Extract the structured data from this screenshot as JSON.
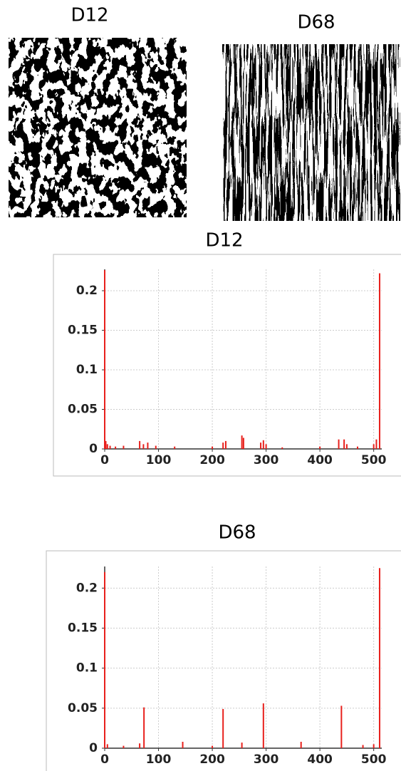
{
  "images": [
    {
      "title": "D12"
    },
    {
      "title": "D68"
    }
  ],
  "chart_data": [
    {
      "type": "stem",
      "title": "D12",
      "color": "#e8201c",
      "grid": true,
      "x": [
        0,
        2,
        5,
        10,
        20,
        35,
        65,
        72,
        80,
        95,
        130,
        200,
        220,
        225,
        255,
        258,
        290,
        295,
        300,
        330,
        400,
        435,
        445,
        450,
        470,
        500,
        505,
        511
      ],
      "values": [
        0.226,
        0.01,
        0.006,
        0.004,
        0.003,
        0.004,
        0.01,
        0.006,
        0.008,
        0.004,
        0.003,
        0.003,
        0.008,
        0.01,
        0.017,
        0.014,
        0.008,
        0.011,
        0.006,
        0.002,
        0.003,
        0.012,
        0.012,
        0.006,
        0.003,
        0.006,
        0.012,
        0.222
      ],
      "xlim": [
        0,
        515
      ],
      "xticks": [
        0,
        100,
        200,
        300,
        400,
        500
      ],
      "ylim": [
        0,
        0.227
      ],
      "yticks": [
        0,
        0.05,
        0.1,
        0.15,
        0.2
      ]
    },
    {
      "type": "stem",
      "title": "D68",
      "color": "#e8201c",
      "grid": true,
      "x": [
        0,
        5,
        35,
        65,
        73,
        145,
        200,
        220,
        255,
        295,
        365,
        440,
        480,
        500,
        511
      ],
      "values": [
        0.22,
        0.005,
        0.003,
        0.006,
        0.051,
        0.008,
        0.003,
        0.049,
        0.007,
        0.056,
        0.008,
        0.053,
        0.004,
        0.005,
        0.225
      ],
      "xlim": [
        0,
        515
      ],
      "xticks": [
        0,
        100,
        200,
        300,
        400,
        500
      ],
      "ylim": [
        0,
        0.227
      ],
      "yticks": [
        0,
        0.05,
        0.1,
        0.15,
        0.2
      ]
    }
  ]
}
